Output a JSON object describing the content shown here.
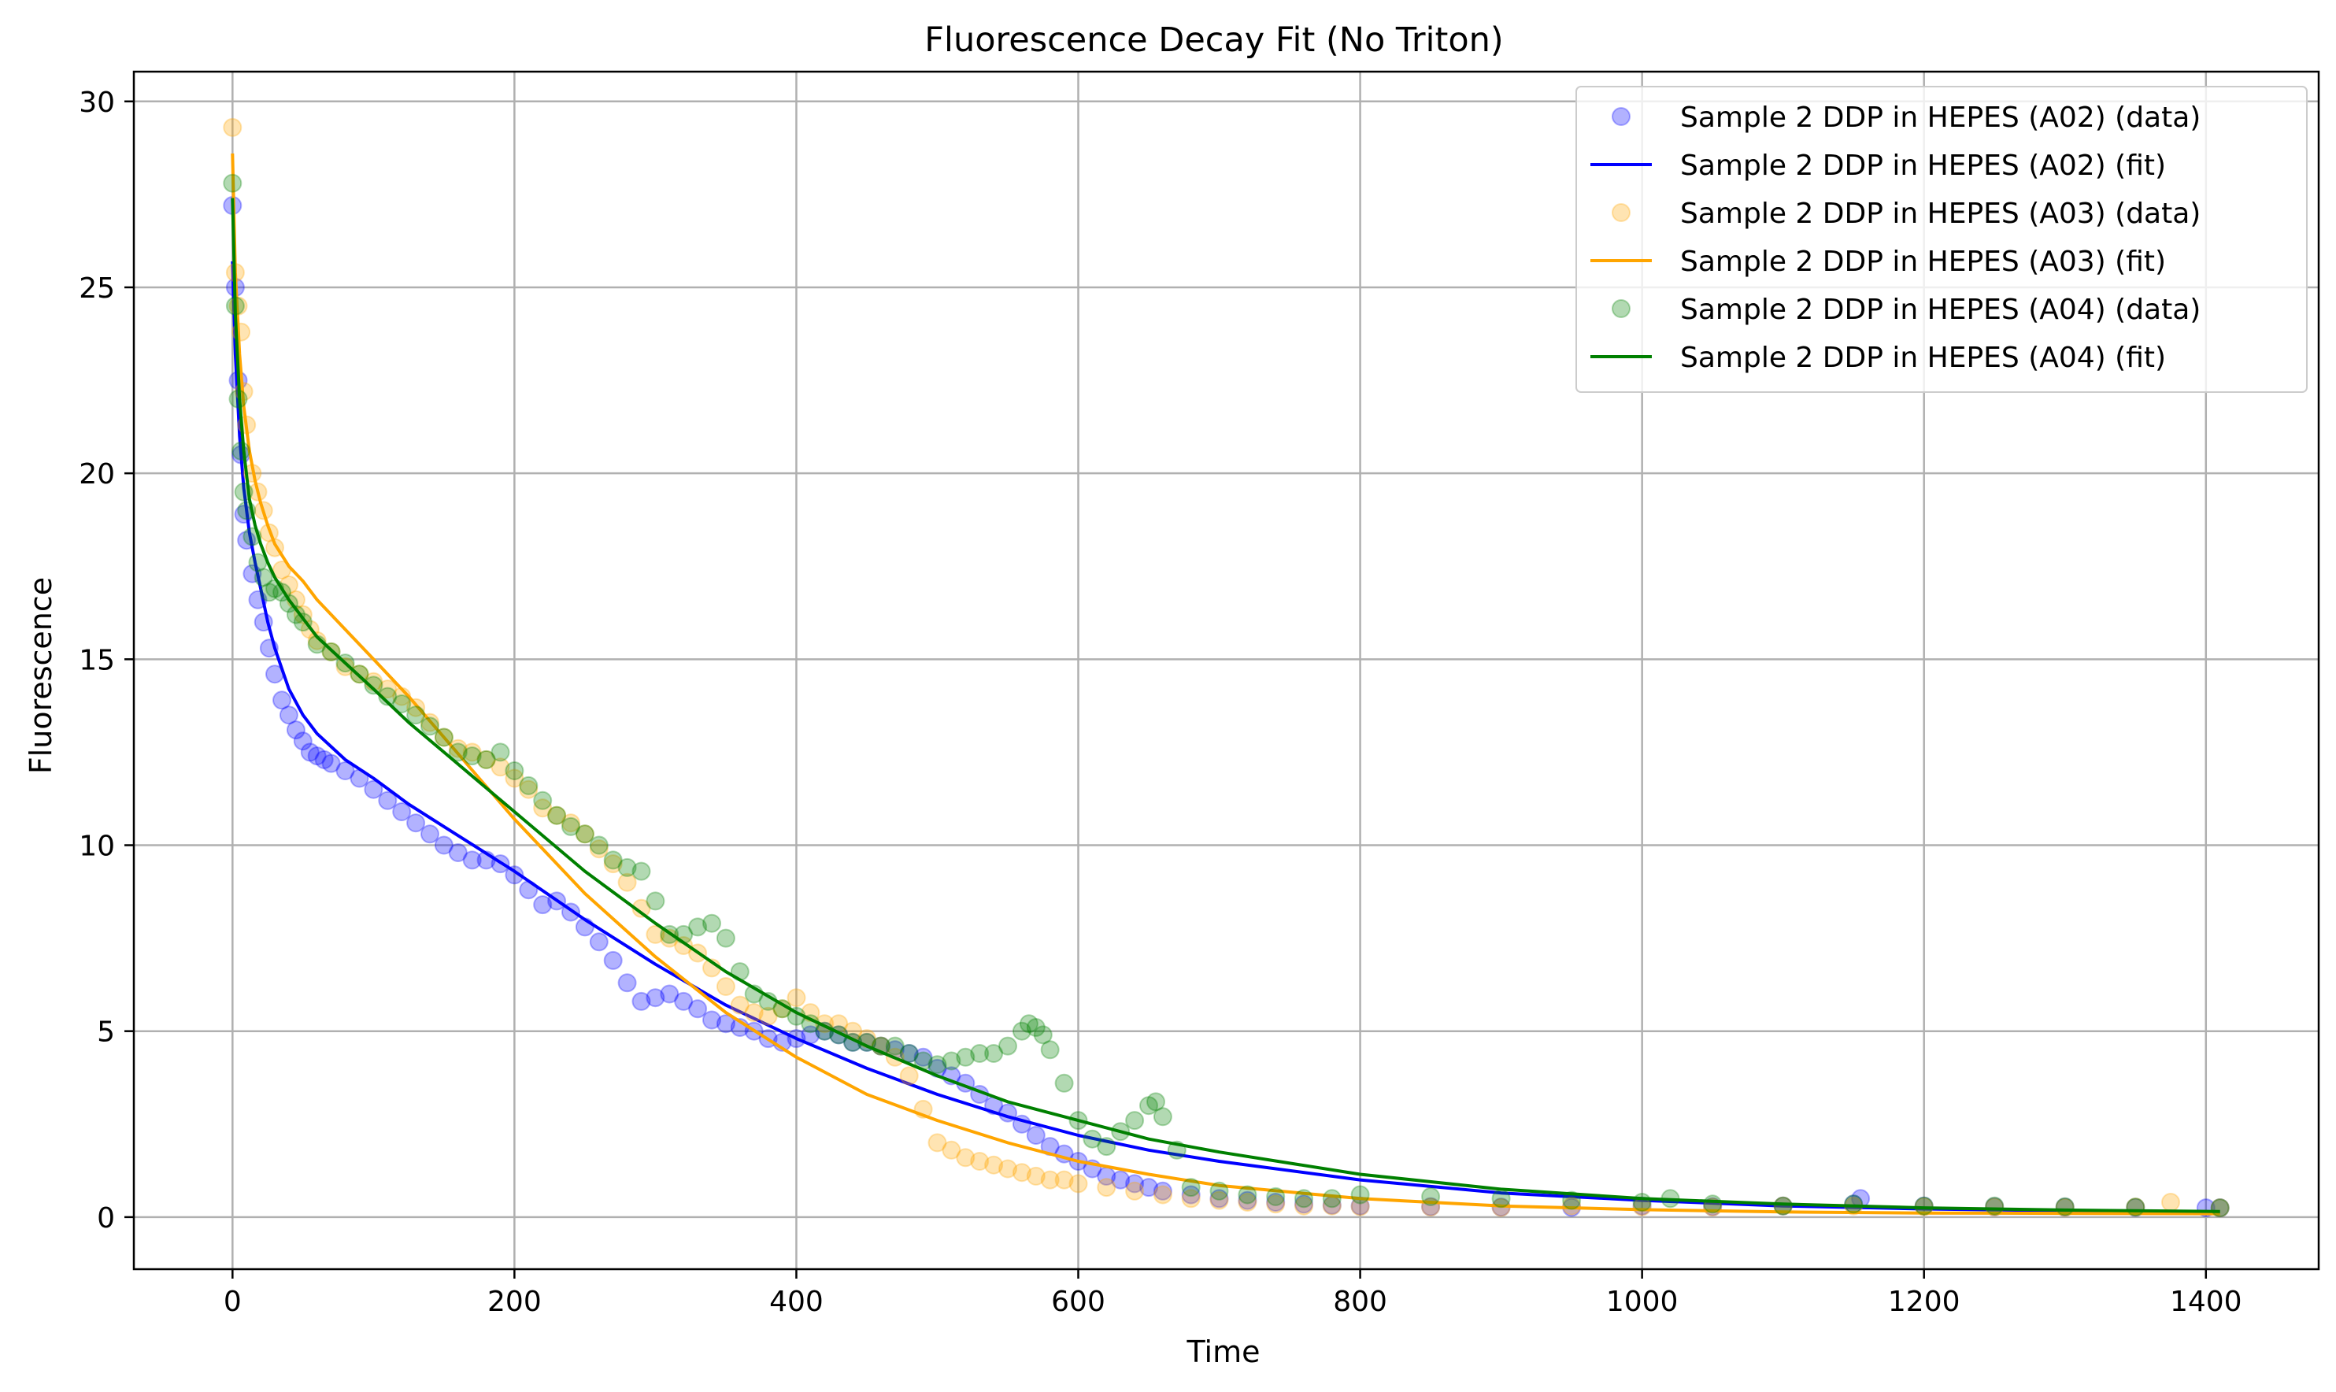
{
  "chart_data": {
    "type": "scatter",
    "title": "Fluorescence Decay Fit (No Triton)",
    "xlabel": "Time",
    "ylabel": "Fluorescence",
    "xlim": [
      -70,
      1480
    ],
    "ylim": [
      -1.4,
      30.8
    ],
    "xticks": [
      0,
      200,
      400,
      600,
      800,
      1000,
      1200,
      1400
    ],
    "yticks": [
      0,
      5,
      10,
      15,
      20,
      25,
      30
    ],
    "grid": true,
    "legend_position": "top-right",
    "series": [
      {
        "name": "Sample 2 DDP in HEPES (A02) (data)",
        "kind": "scatter",
        "color": "#0000ff",
        "x": [
          0,
          2,
          4,
          6,
          8,
          10,
          14,
          18,
          22,
          26,
          30,
          35,
          40,
          45,
          50,
          55,
          60,
          65,
          70,
          80,
          90,
          100,
          110,
          120,
          130,
          140,
          150,
          160,
          170,
          180,
          190,
          200,
          210,
          220,
          230,
          240,
          250,
          260,
          270,
          280,
          290,
          300,
          310,
          320,
          330,
          340,
          350,
          360,
          370,
          380,
          390,
          400,
          410,
          420,
          430,
          440,
          450,
          460,
          470,
          480,
          490,
          500,
          510,
          520,
          530,
          540,
          550,
          560,
          570,
          580,
          590,
          600,
          610,
          620,
          630,
          640,
          650,
          660,
          680,
          700,
          720,
          740,
          760,
          780,
          800,
          850,
          900,
          950,
          1000,
          1050,
          1100,
          1150,
          1155,
          1200,
          1250,
          1300,
          1350,
          1400,
          1410
        ],
        "y": [
          27.2,
          25.0,
          22.5,
          20.5,
          18.9,
          18.2,
          17.3,
          16.6,
          16.0,
          15.3,
          14.6,
          13.9,
          13.5,
          13.1,
          12.8,
          12.5,
          12.4,
          12.3,
          12.2,
          12.0,
          11.8,
          11.5,
          11.2,
          10.9,
          10.6,
          10.3,
          10.0,
          9.8,
          9.6,
          9.6,
          9.5,
          9.2,
          8.8,
          8.4,
          8.5,
          8.2,
          7.8,
          7.4,
          6.9,
          6.3,
          5.8,
          5.9,
          6.0,
          5.8,
          5.6,
          5.3,
          5.2,
          5.1,
          5.0,
          4.8,
          4.7,
          4.8,
          4.9,
          5.0,
          4.9,
          4.7,
          4.7,
          4.6,
          4.5,
          4.4,
          4.3,
          4.0,
          3.8,
          3.6,
          3.3,
          3.0,
          2.8,
          2.5,
          2.2,
          1.9,
          1.7,
          1.5,
          1.3,
          1.1,
          1.0,
          0.9,
          0.8,
          0.7,
          0.6,
          0.5,
          0.45,
          0.4,
          0.35,
          0.32,
          0.3,
          0.28,
          0.27,
          0.26,
          0.3,
          0.28,
          0.3,
          0.35,
          0.5,
          0.3,
          0.28,
          0.27,
          0.26,
          0.25,
          0.25
        ]
      },
      {
        "name": "Sample 2 DDP in HEPES (A02) (fit)",
        "kind": "line",
        "color": "#0000ff",
        "x": [
          0,
          2,
          5,
          8,
          12,
          16,
          20,
          25,
          30,
          40,
          50,
          60,
          80,
          100,
          125,
          150,
          175,
          200,
          250,
          300,
          350,
          400,
          450,
          500,
          550,
          600,
          650,
          700,
          800,
          900,
          1000,
          1100,
          1200,
          1300,
          1410
        ],
        "y": [
          25.7,
          23.2,
          21.0,
          19.6,
          18.4,
          17.6,
          16.9,
          16.0,
          15.3,
          14.2,
          13.5,
          13.0,
          12.3,
          11.8,
          11.1,
          10.5,
          9.9,
          9.3,
          8.0,
          6.8,
          5.7,
          4.8,
          4.0,
          3.3,
          2.7,
          2.2,
          1.8,
          1.5,
          1.0,
          0.65,
          0.45,
          0.3,
          0.22,
          0.17,
          0.13
        ]
      },
      {
        "name": "Sample 2 DDP in HEPES (A03) (data)",
        "kind": "scatter",
        "color": "#ffa500",
        "x": [
          0,
          2,
          4,
          6,
          8,
          10,
          14,
          18,
          22,
          26,
          30,
          35,
          40,
          45,
          50,
          55,
          60,
          70,
          80,
          90,
          100,
          110,
          120,
          130,
          140,
          150,
          160,
          170,
          180,
          190,
          200,
          210,
          220,
          230,
          240,
          250,
          260,
          270,
          280,
          290,
          300,
          310,
          320,
          330,
          340,
          350,
          360,
          370,
          380,
          390,
          400,
          410,
          420,
          430,
          440,
          450,
          460,
          470,
          480,
          490,
          500,
          510,
          520,
          530,
          540,
          550,
          560,
          570,
          580,
          590,
          600,
          620,
          640,
          660,
          680,
          700,
          720,
          740,
          760,
          780,
          800,
          850,
          900,
          950,
          1000,
          1050,
          1100,
          1150,
          1200,
          1250,
          1300,
          1350,
          1375,
          1410
        ],
        "y": [
          29.3,
          25.4,
          24.5,
          23.8,
          22.2,
          21.3,
          20.0,
          19.5,
          19.0,
          18.4,
          18.0,
          17.4,
          17.0,
          16.6,
          16.2,
          15.8,
          15.5,
          15.2,
          14.8,
          14.6,
          14.4,
          14.2,
          14.0,
          13.7,
          13.3,
          12.9,
          12.6,
          12.5,
          12.3,
          12.1,
          11.8,
          11.5,
          11.0,
          10.8,
          10.6,
          10.3,
          9.9,
          9.5,
          9.0,
          8.3,
          7.6,
          7.5,
          7.3,
          7.1,
          6.7,
          6.2,
          5.7,
          5.5,
          5.4,
          5.6,
          5.9,
          5.5,
          5.2,
          5.2,
          5.0,
          4.8,
          4.6,
          4.3,
          3.8,
          2.9,
          2.0,
          1.8,
          1.6,
          1.5,
          1.4,
          1.3,
          1.2,
          1.1,
          1.0,
          1.0,
          0.9,
          0.8,
          0.7,
          0.6,
          0.5,
          0.45,
          0.4,
          0.35,
          0.3,
          0.3,
          0.28,
          0.27,
          0.26,
          0.3,
          0.28,
          0.27,
          0.3,
          0.3,
          0.28,
          0.27,
          0.26,
          0.27,
          0.4,
          0.25
        ]
      },
      {
        "name": "Sample 2 DDP in HEPES (A03) (fit)",
        "kind": "line",
        "color": "#ffa500",
        "x": [
          0,
          2,
          5,
          8,
          12,
          16,
          20,
          25,
          30,
          40,
          50,
          60,
          80,
          100,
          125,
          150,
          175,
          200,
          250,
          300,
          350,
          400,
          450,
          500,
          550,
          600,
          650,
          700,
          800,
          900,
          1000,
          1100,
          1200,
          1300,
          1410
        ],
        "y": [
          28.6,
          25.4,
          23.2,
          21.8,
          20.6,
          19.8,
          19.2,
          18.6,
          18.1,
          17.5,
          17.1,
          16.6,
          15.8,
          15.0,
          14.0,
          12.9,
          11.8,
          10.7,
          8.7,
          7.0,
          5.5,
          4.3,
          3.3,
          2.6,
          2.0,
          1.5,
          1.15,
          0.85,
          0.5,
          0.3,
          0.2,
          0.14,
          0.11,
          0.1,
          0.09
        ]
      },
      {
        "name": "Sample 2 DDP in HEPES (A04) (data)",
        "kind": "scatter",
        "color": "#008000",
        "x": [
          0,
          2,
          4,
          6,
          8,
          10,
          14,
          18,
          22,
          26,
          30,
          35,
          40,
          45,
          50,
          60,
          70,
          80,
          90,
          100,
          110,
          120,
          130,
          140,
          150,
          160,
          170,
          180,
          190,
          200,
          210,
          220,
          230,
          240,
          250,
          260,
          270,
          280,
          290,
          300,
          310,
          320,
          330,
          340,
          350,
          360,
          370,
          380,
          390,
          400,
          410,
          420,
          430,
          440,
          450,
          460,
          470,
          480,
          490,
          500,
          510,
          520,
          530,
          540,
          550,
          560,
          565,
          570,
          575,
          580,
          590,
          600,
          610,
          620,
          630,
          640,
          650,
          655,
          660,
          670,
          680,
          700,
          720,
          740,
          760,
          780,
          800,
          850,
          900,
          950,
          1000,
          1020,
          1050,
          1100,
          1150,
          1200,
          1250,
          1300,
          1350,
          1410
        ],
        "y": [
          27.8,
          24.5,
          22.0,
          20.6,
          19.5,
          19.0,
          18.3,
          17.6,
          17.2,
          16.8,
          16.9,
          16.8,
          16.5,
          16.2,
          16.0,
          15.4,
          15.2,
          14.9,
          14.6,
          14.3,
          14.0,
          13.8,
          13.5,
          13.2,
          12.9,
          12.5,
          12.4,
          12.3,
          12.5,
          12.0,
          11.6,
          11.2,
          10.8,
          10.5,
          10.3,
          10.0,
          9.6,
          9.4,
          9.3,
          8.5,
          7.6,
          7.6,
          7.8,
          7.9,
          7.5,
          6.6,
          6.0,
          5.8,
          5.6,
          5.4,
          5.2,
          5.0,
          4.9,
          4.7,
          4.7,
          4.6,
          4.6,
          4.4,
          4.2,
          4.1,
          4.2,
          4.3,
          4.4,
          4.4,
          4.6,
          5.0,
          5.2,
          5.1,
          4.9,
          4.5,
          3.6,
          2.6,
          2.1,
          1.9,
          2.3,
          2.6,
          3.0,
          3.1,
          2.7,
          1.8,
          0.8,
          0.7,
          0.6,
          0.55,
          0.5,
          0.5,
          0.6,
          0.55,
          0.5,
          0.45,
          0.4,
          0.5,
          0.35,
          0.3,
          0.35,
          0.3,
          0.3,
          0.28,
          0.27,
          0.25
        ]
      },
      {
        "name": "Sample 2 DDP in HEPES (A04) (fit)",
        "kind": "line",
        "color": "#008000",
        "x": [
          0,
          2,
          5,
          8,
          12,
          16,
          20,
          25,
          30,
          40,
          50,
          60,
          80,
          100,
          125,
          150,
          175,
          200,
          250,
          300,
          350,
          400,
          450,
          500,
          550,
          600,
          650,
          700,
          800,
          900,
          1000,
          1100,
          1200,
          1300,
          1410
        ],
        "y": [
          27.4,
          24.3,
          22.0,
          20.6,
          19.3,
          18.6,
          18.1,
          17.6,
          17.2,
          16.6,
          16.1,
          15.6,
          14.9,
          14.2,
          13.3,
          12.5,
          11.7,
          10.9,
          9.3,
          7.9,
          6.6,
          5.5,
          4.6,
          3.8,
          3.1,
          2.6,
          2.1,
          1.75,
          1.15,
          0.75,
          0.5,
          0.35,
          0.25,
          0.19,
          0.15
        ]
      }
    ]
  }
}
